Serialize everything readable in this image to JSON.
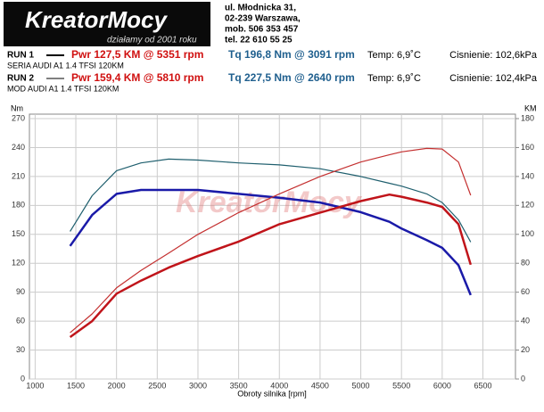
{
  "header": {
    "logo": "KreatorMocy",
    "tagline": "działamy od 2001 roku",
    "address": [
      "ul. Młodnicka 31,",
      "02-239  Warszawa,",
      "mob.  506 353 457",
      "tel.  22 610 55 25"
    ]
  },
  "runs": [
    {
      "label": "RUN 1",
      "pwr": "Pwr  127,5 KM @ 5351 rpm",
      "tq": "Tq 196,8 Nm @ 3091 rpm",
      "temp": "Temp: 6,9˚C",
      "pressure": "Cisnienie: 102,6kPa",
      "car": "SERIA AUDI A1 1.4 TFSI 120KM"
    },
    {
      "label": "RUN 2",
      "pwr": "Pwr  159,4 KM @ 5810 rpm",
      "tq": "Tq 227,5 Nm @ 2640 rpm",
      "temp": "Temp: 6,9˚C",
      "pressure": "Cisnienie: 102,4kPa",
      "car": "MOD AUDI A1 1.4 TFSI 120KM"
    }
  ],
  "chart_data": {
    "type": "line",
    "ylabel": "Nm",
    "y2label": "KM",
    "xlabel": "Obroty silnika [rpm]",
    "x": [
      1430,
      1700,
      2000,
      2300,
      2640,
      3000,
      3500,
      4000,
      4500,
      5000,
      5351,
      5500,
      5810,
      6000,
      6200,
      6350
    ],
    "series": [
      {
        "color": "#1a1aa8",
        "line_width": 2.5,
        "values": [
          138,
          170,
          192,
          196,
          196,
          196,
          192,
          188,
          183,
          173,
          163,
          156,
          144,
          136,
          118,
          87
        ]
      },
      {
        "color": "#1f5f6e",
        "line_width": 1.2,
        "values": [
          153,
          190,
          216,
          224,
          228,
          227,
          224,
          222,
          218,
          210,
          203,
          200,
          192,
          183,
          165,
          142
        ]
      },
      {
        "color": "#c0141a",
        "line_width": 2.5,
        "axis": "y2",
        "values": [
          29,
          40,
          59,
          68,
          77,
          85,
          95,
          107,
          115,
          123,
          127.5,
          126,
          122,
          119,
          107,
          79
        ]
      },
      {
        "color": "#c43030",
        "line_width": 1.2,
        "axis": "y2",
        "values": [
          32,
          45,
          63,
          75,
          87,
          100,
          115,
          128,
          140,
          150,
          155,
          157,
          159.4,
          159,
          150,
          127
        ]
      }
    ],
    "xlim": [
      930,
      6900
    ],
    "xticks": [
      1000,
      1500,
      2000,
      2500,
      3000,
      3500,
      4000,
      4500,
      5000,
      5500,
      6000,
      6500
    ],
    "ylim": [
      0,
      270
    ],
    "yticks": [
      0,
      30,
      60,
      90,
      120,
      150,
      180,
      210,
      240,
      270
    ],
    "y2lim": [
      0,
      180
    ],
    "y2ticks": [
      0,
      20,
      40,
      60,
      80,
      100,
      120,
      140,
      160,
      180
    ],
    "grid": true
  }
}
